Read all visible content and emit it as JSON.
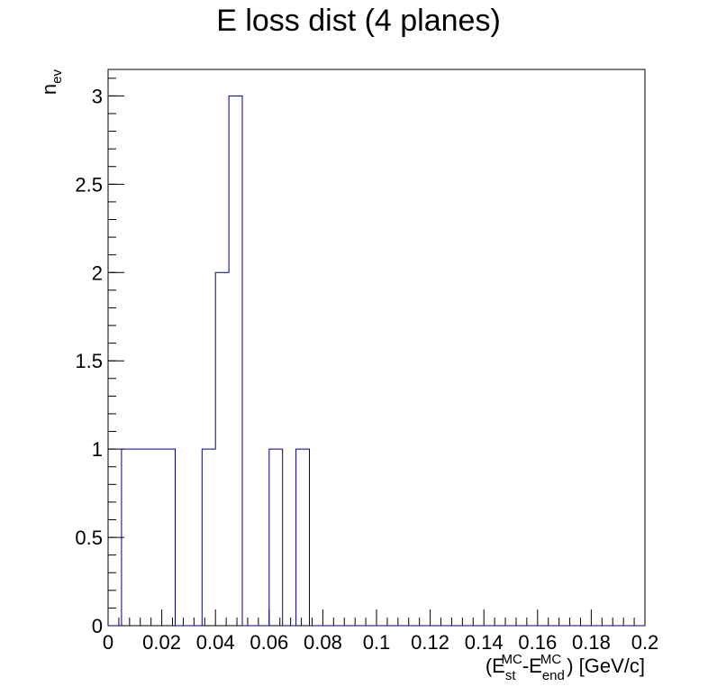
{
  "chart_data": {
    "type": "bar",
    "title": "E loss dist (4 planes)",
    "xlabel": {
      "base": "(E",
      "sub1": "st",
      "sup1": "MC",
      "mid": "-E",
      "sub2": "end",
      "sup2": "MC",
      "tail": ") [GeV/c]"
    },
    "ylabel": {
      "base": "n",
      "sub": "ev"
    },
    "xlim": [
      0,
      0.2
    ],
    "ylim": [
      0,
      3.15
    ],
    "x_ticks": [
      "0",
      "0.02",
      "0.04",
      "0.06",
      "0.08",
      "0.1",
      "0.12",
      "0.14",
      "0.16",
      "0.18",
      "0.2"
    ],
    "x_tick_values": [
      0,
      0.02,
      0.04,
      0.06,
      0.08,
      0.1,
      0.12,
      0.14,
      0.16,
      0.18,
      0.2
    ],
    "y_ticks": [
      "0",
      "0.5",
      "1",
      "1.5",
      "2",
      "2.5",
      "3"
    ],
    "y_tick_values": [
      0,
      0.5,
      1,
      1.5,
      2,
      2.5,
      3
    ],
    "bin_width": 0.005,
    "bin_edges_start": 0,
    "values": [
      0,
      1,
      1,
      1,
      1,
      0,
      0,
      1,
      2,
      3,
      0,
      0,
      1,
      0,
      1,
      0,
      0,
      0,
      0,
      0,
      0,
      0,
      0,
      0,
      0,
      0,
      0,
      0,
      0,
      0,
      0,
      0,
      0,
      0,
      0,
      0,
      0,
      0,
      0,
      0
    ],
    "line_color": "#000080",
    "grid": false
  }
}
